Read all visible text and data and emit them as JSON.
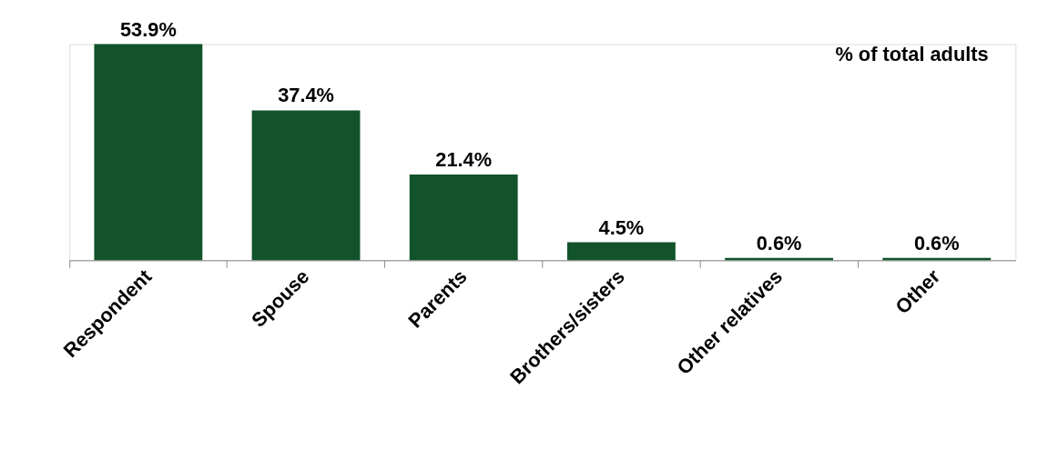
{
  "chart_data": {
    "type": "bar",
    "title": "% of total adults",
    "categories": [
      "Respondent",
      "Spouse",
      "Parents",
      "Brothers/sisters",
      "Other relatives",
      "Other"
    ],
    "values": [
      53.9,
      37.4,
      21.4,
      4.5,
      0.6,
      0.6
    ],
    "value_labels": [
      "53.9%",
      "37.4%",
      "21.4%",
      "4.5%",
      "0.6%",
      "0.6%"
    ],
    "color": "#12532b",
    "grid": false
  }
}
